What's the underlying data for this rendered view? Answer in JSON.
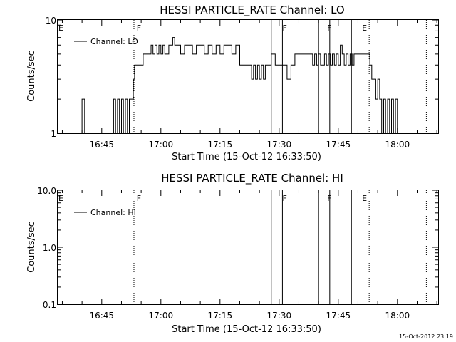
{
  "footer_timestamp": "15-Oct-2012 23:19",
  "chart_data": [
    {
      "type": "line",
      "title": "HESSI PARTICLE_RATE Channel: LO",
      "xlabel": "Start Time (15-Oct-12 16:33:50)",
      "ylabel": "Counts/sec",
      "yscale": "log",
      "ylim": [
        1,
        10
      ],
      "ytick_labels": [
        "10",
        "1"
      ],
      "xlim": [
        "16:33:50",
        "18:10:20"
      ],
      "xticks": [
        "16:45",
        "17:00",
        "17:15",
        "17:30",
        "17:45",
        "18:00"
      ],
      "grid": false,
      "legend": {
        "position": "top-left",
        "entries": [
          "Channel: LO"
        ]
      },
      "annotations": [
        {
          "text": "E",
          "x": "16:33:50"
        },
        {
          "text": "F",
          "x": "16:53:40"
        },
        {
          "text": "F",
          "x": "17:30:40"
        },
        {
          "text": "F",
          "x": "17:42:00"
        },
        {
          "text": "E",
          "x": "17:50:50"
        }
      ],
      "vertical_lines": [
        {
          "x": "16:53:10",
          "style": "dotted"
        },
        {
          "x": "17:28:00",
          "style": "solid"
        },
        {
          "x": "17:30:50",
          "style": "solid"
        },
        {
          "x": "17:40:00",
          "style": "solid"
        },
        {
          "x": "17:42:50",
          "style": "solid"
        },
        {
          "x": "17:48:20",
          "style": "solid"
        },
        {
          "x": "17:52:50",
          "style": "dotted"
        },
        {
          "x": "18:07:20",
          "style": "dotted"
        }
      ],
      "series": [
        {
          "name": "Channel: LO",
          "x": [
            "16:38:00",
            "16:40:00",
            "16:40:40",
            "16:41:10",
            "16:41:40",
            "16:42:30",
            "16:47:00",
            "16:48:00",
            "16:48:30",
            "16:49:00",
            "16:49:30",
            "16:50:00",
            "16:50:30",
            "16:51:00",
            "16:51:30",
            "16:52:00",
            "16:52:40",
            "16:53:00",
            "16:53:20",
            "16:54:00",
            "16:55:30",
            "16:56:30",
            "16:57:00",
            "16:57:30",
            "16:58:00",
            "16:58:30",
            "16:59:00",
            "16:59:30",
            "17:00:00",
            "17:00:30",
            "17:01:00",
            "17:02:00",
            "17:03:00",
            "17:03:30",
            "17:04:00",
            "17:05:00",
            "17:06:00",
            "17:07:00",
            "17:08:00",
            "17:09:00",
            "17:10:00",
            "17:11:00",
            "17:12:00",
            "17:13:00",
            "17:14:00",
            "17:15:00",
            "17:16:00",
            "17:17:00",
            "17:18:00",
            "17:19:00",
            "17:20:00",
            "17:21:00",
            "17:21:30",
            "17:22:00",
            "17:22:30",
            "17:23:00",
            "17:23:30",
            "17:24:00",
            "17:24:30",
            "17:25:00",
            "17:25:30",
            "17:26:00",
            "17:26:30",
            "17:27:00",
            "17:28:00",
            "17:29:00",
            "17:30:00",
            "17:31:00",
            "17:32:00",
            "17:33:00",
            "17:34:00",
            "17:35:00",
            "17:36:00",
            "17:37:00",
            "17:38:00",
            "17:38:30",
            "17:39:00",
            "17:39:30",
            "17:40:00",
            "17:40:30",
            "17:41:00",
            "17:41:30",
            "17:42:00",
            "17:42:30",
            "17:43:00",
            "17:43:30",
            "17:44:00",
            "17:44:30",
            "17:45:00",
            "17:45:30",
            "17:46:00",
            "17:46:30",
            "17:47:00",
            "17:47:30",
            "17:48:00",
            "17:48:30",
            "17:49:00",
            "17:50:00",
            "17:51:00",
            "17:52:00",
            "17:53:00",
            "17:53:30",
            "17:54:00",
            "17:54:30",
            "17:55:00",
            "17:55:30",
            "17:56:00",
            "17:56:30",
            "17:57:00",
            "17:57:30",
            "17:58:00",
            "17:58:30",
            "17:59:00",
            "17:59:30",
            "18:00:00",
            "18:00:30"
          ],
          "values": [
            1.0,
            2.0,
            1.0,
            1.0,
            1.0,
            1.0,
            1.0,
            2.0,
            1.0,
            2.0,
            1.0,
            2.0,
            1.0,
            2.0,
            1.0,
            2.0,
            2.0,
            3.0,
            4.0,
            4.0,
            5.0,
            5.0,
            5.0,
            6.0,
            5.0,
            6.0,
            5.0,
            6.0,
            5.0,
            6.0,
            5.0,
            6.0,
            7.0,
            6.0,
            6.0,
            5.0,
            6.0,
            6.0,
            5.0,
            6.0,
            6.0,
            5.0,
            6.0,
            5.0,
            6.0,
            5.0,
            6.0,
            6.0,
            5.0,
            6.0,
            4.0,
            4.0,
            4.0,
            4.0,
            4.0,
            3.0,
            4.0,
            3.0,
            4.0,
            3.0,
            4.0,
            3.0,
            4.0,
            4.0,
            5.0,
            4.0,
            4.0,
            4.0,
            3.0,
            4.0,
            5.0,
            5.0,
            5.0,
            5.0,
            5.0,
            4.0,
            5.0,
            4.0,
            5.0,
            4.0,
            4.0,
            5.0,
            4.0,
            5.0,
            4.0,
            5.0,
            4.0,
            5.0,
            4.0,
            6.0,
            5.0,
            4.0,
            5.0,
            4.0,
            5.0,
            4.0,
            5.0,
            5.0,
            5.0,
            5.0,
            4.0,
            3.0,
            3.0,
            2.0,
            3.0,
            2.0,
            1.0,
            2.0,
            1.0,
            2.0,
            1.0,
            2.0,
            1.0,
            2.0,
            1.0,
            1.0
          ]
        }
      ]
    },
    {
      "type": "line",
      "title": "HESSI PARTICLE_RATE Channel: HI",
      "xlabel": "Start Time (15-Oct-12 16:33:50)",
      "ylabel": "Counts/sec",
      "yscale": "log",
      "ylim": [
        0.1,
        10
      ],
      "ytick_labels": [
        "10.0",
        "1.0",
        "0.1"
      ],
      "xlim": [
        "16:33:50",
        "18:10:20"
      ],
      "xticks": [
        "16:45",
        "17:00",
        "17:15",
        "17:30",
        "17:45",
        "18:00"
      ],
      "grid": false,
      "legend": {
        "position": "top-left",
        "entries": [
          "Channel: HI"
        ]
      },
      "annotations": [
        {
          "text": "E",
          "x": "16:33:50"
        },
        {
          "text": "F",
          "x": "16:53:40"
        },
        {
          "text": "F",
          "x": "17:30:40"
        },
        {
          "text": "F",
          "x": "17:42:00"
        },
        {
          "text": "E",
          "x": "17:50:50"
        }
      ],
      "vertical_lines": [
        {
          "x": "16:53:10",
          "style": "dotted"
        },
        {
          "x": "17:28:00",
          "style": "solid"
        },
        {
          "x": "17:30:50",
          "style": "solid"
        },
        {
          "x": "17:40:00",
          "style": "solid"
        },
        {
          "x": "17:42:50",
          "style": "solid"
        },
        {
          "x": "17:48:20",
          "style": "solid"
        },
        {
          "x": "17:52:50",
          "style": "dotted"
        },
        {
          "x": "18:07:20",
          "style": "dotted"
        }
      ],
      "series": [
        {
          "name": "Channel: HI",
          "x": [],
          "values": []
        }
      ]
    }
  ]
}
